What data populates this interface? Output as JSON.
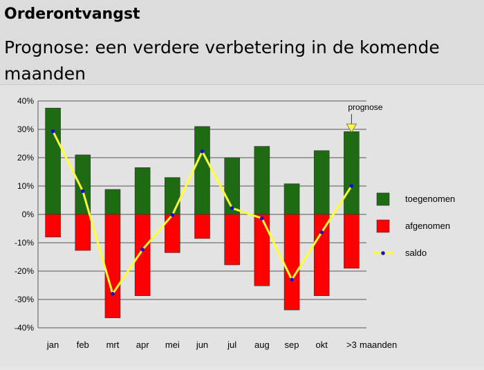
{
  "header": {
    "title": "Orderontvangst",
    "subtitle": "Prognose: een verdere verbetering in de komende maanden"
  },
  "chart_data": {
    "type": "bar",
    "categories": [
      "jan",
      "feb",
      "mrt",
      "apr",
      "mei",
      "jun",
      "jul",
      "aug",
      "sep",
      "okt",
      ">3"
    ],
    "x_suffix": "maanden",
    "ylim": [
      -40,
      40
    ],
    "yticks": [
      40,
      30,
      20,
      10,
      0,
      -10,
      -20,
      -30,
      -40
    ],
    "ytick_labels": [
      "40%",
      "30%",
      "20%",
      "10%",
      "0%",
      "-10%",
      "-20%",
      "-30%",
      "-40%"
    ],
    "grid": true,
    "legend_position": "right",
    "series": [
      {
        "name": "toegenomen",
        "type": "bar",
        "color": "#1e6b14",
        "values": [
          37.5,
          21,
          8.8,
          16.5,
          13,
          31,
          20,
          24,
          10.8,
          22.5,
          29.2
        ]
      },
      {
        "name": "afgenomen",
        "type": "bar",
        "color": "#ff0000",
        "values": [
          -8,
          -12.7,
          -36.5,
          -28.7,
          -13.5,
          -8.5,
          -17.8,
          -25.2,
          -33.7,
          -28.7,
          -19
        ]
      },
      {
        "name": "saldo",
        "type": "line",
        "color": "#ffff33",
        "marker_color": "#1010cc",
        "values": [
          29.3,
          8.2,
          -28,
          -12.4,
          -0.2,
          22.2,
          2.2,
          -1.4,
          -23,
          -6.3,
          10
        ]
      }
    ],
    "annotation": {
      "text": "prognose",
      "category_index": 10
    }
  }
}
